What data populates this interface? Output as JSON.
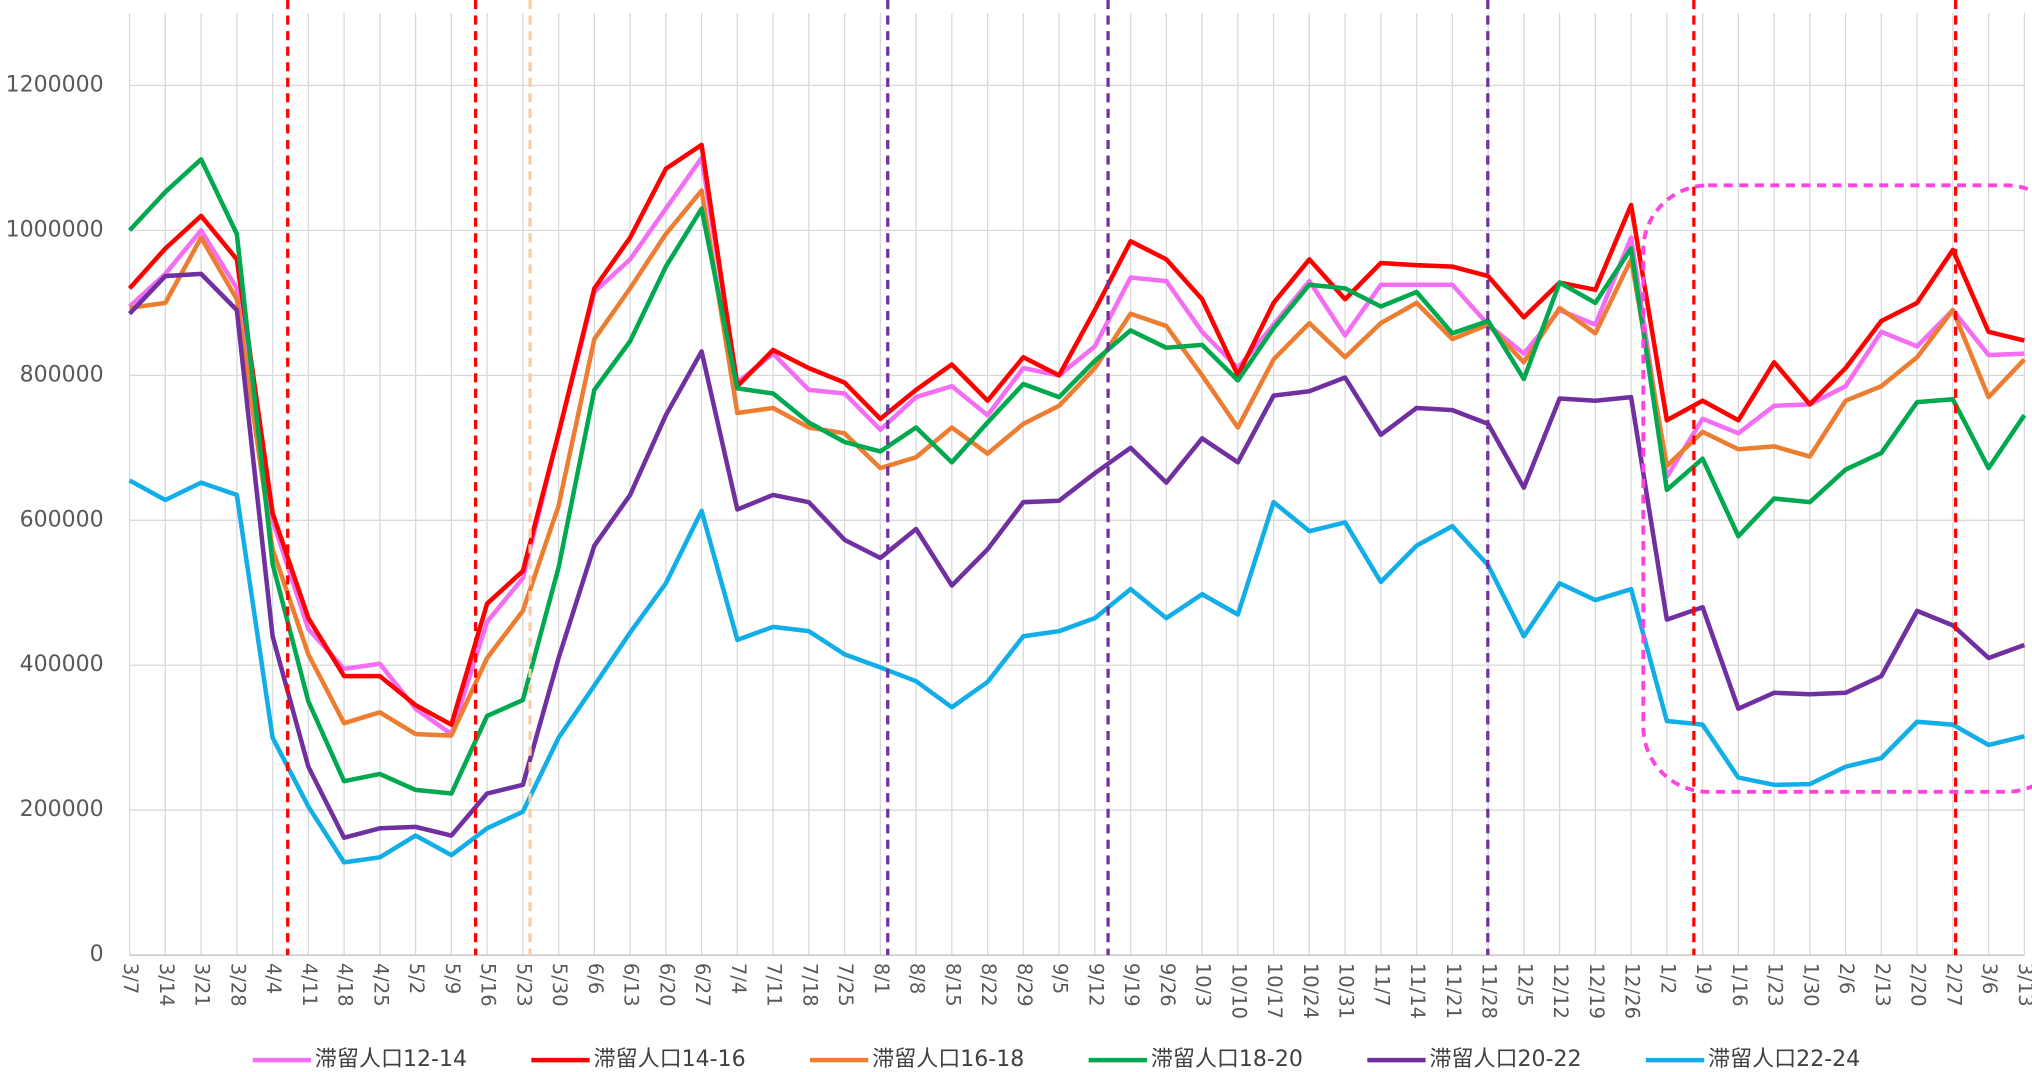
{
  "chart_data": {
    "type": "line",
    "categories": [
      "3/7",
      "3/14",
      "3/21",
      "3/28",
      "4/4",
      "4/11",
      "4/18",
      "4/25",
      "5/2",
      "5/9",
      "5/16",
      "5/23",
      "5/30",
      "6/6",
      "6/13",
      "6/20",
      "6/27",
      "7/4",
      "7/11",
      "7/18",
      "7/25",
      "8/1",
      "8/8",
      "8/15",
      "8/22",
      "8/29",
      "9/5",
      "9/12",
      "9/19",
      "9/26",
      "10/3",
      "10/10",
      "10/17",
      "10/24",
      "10/31",
      "11/7",
      "11/14",
      "11/21",
      "11/28",
      "12/5",
      "12/12",
      "12/19",
      "12/26",
      "1/2",
      "1/9",
      "1/16",
      "1/23",
      "1/30",
      "2/6",
      "2/13",
      "2/20",
      "2/27",
      "3/6",
      "3/13"
    ],
    "series": [
      {
        "name": "滞留人口12-14",
        "color": "#f46ef4",
        "values": [
          895000,
          940000,
          1000000,
          920000,
          600000,
          450000,
          395000,
          402000,
          340000,
          305000,
          460000,
          520000,
          720000,
          915000,
          960000,
          1030000,
          1100000,
          790000,
          830000,
          780000,
          775000,
          725000,
          770000,
          785000,
          745000,
          810000,
          800000,
          840000,
          935000,
          930000,
          860000,
          810000,
          870000,
          930000,
          855000,
          925000,
          925000,
          925000,
          870000,
          830000,
          890000,
          870000,
          990000,
          660000,
          740000,
          720000,
          758000,
          760000,
          785000,
          860000,
          840000,
          890000,
          828000,
          830000
        ]
      },
      {
        "name": "滞留人口14-16",
        "color": "#ff0000",
        "values": [
          920000,
          975000,
          1020000,
          960000,
          610000,
          465000,
          385000,
          385000,
          345000,
          318000,
          485000,
          530000,
          720000,
          920000,
          990000,
          1085000,
          1118000,
          785000,
          835000,
          810000,
          790000,
          740000,
          780000,
          815000,
          765000,
          825000,
          800000,
          890000,
          985000,
          960000,
          905000,
          800000,
          900000,
          960000,
          905000,
          955000,
          952000,
          950000,
          937000,
          880000,
          928000,
          918000,
          1035000,
          738000,
          765000,
          738000,
          818000,
          760000,
          810000,
          875000,
          900000,
          973000,
          860000,
          848000
        ]
      },
      {
        "name": "滞留人口16-18",
        "color": "#ed7d31",
        "values": [
          893000,
          900000,
          990000,
          905000,
          560000,
          415000,
          320000,
          335000,
          305000,
          303000,
          410000,
          475000,
          620000,
          850000,
          920000,
          995000,
          1055000,
          748000,
          755000,
          728000,
          720000,
          672000,
          687000,
          728000,
          692000,
          733000,
          758000,
          810000,
          885000,
          868000,
          800000,
          728000,
          822000,
          872000,
          825000,
          872000,
          900000,
          850000,
          870000,
          818000,
          893000,
          858000,
          960000,
          675000,
          722000,
          698000,
          702000,
          688000,
          765000,
          785000,
          825000,
          890000,
          770000,
          822000
        ]
      },
      {
        "name": "滞留人口18-20",
        "color": "#00a94f",
        "values": [
          1000000,
          1053000,
          1098000,
          995000,
          540000,
          350000,
          240000,
          250000,
          228000,
          223000,
          330000,
          352000,
          535000,
          780000,
          847000,
          950000,
          1030000,
          782000,
          775000,
          735000,
          708000,
          695000,
          728000,
          680000,
          735000,
          788000,
          770000,
          820000,
          862000,
          838000,
          842000,
          793000,
          865000,
          925000,
          920000,
          895000,
          915000,
          858000,
          875000,
          795000,
          928000,
          900000,
          975000,
          642000,
          685000,
          578000,
          630000,
          625000,
          670000,
          693000,
          763000,
          767000,
          672000,
          745000
        ]
      },
      {
        "name": "滞留人口20-22",
        "color": "#7030a0",
        "values": [
          885000,
          937000,
          940000,
          890000,
          440000,
          260000,
          162000,
          175000,
          177000,
          165000,
          223000,
          235000,
          410000,
          565000,
          635000,
          745000,
          833000,
          615000,
          635000,
          625000,
          573000,
          548000,
          588000,
          510000,
          560000,
          625000,
          627000,
          665000,
          700000,
          652000,
          713000,
          680000,
          772000,
          778000,
          797000,
          718000,
          755000,
          752000,
          733000,
          645000,
          768000,
          765000,
          770000,
          463000,
          480000,
          340000,
          362000,
          360000,
          362000,
          385000,
          475000,
          455000,
          410000,
          428000
        ]
      },
      {
        "name": "滞留人口22-24",
        "color": "#12aee8",
        "values": [
          655000,
          628000,
          652000,
          635000,
          300000,
          205000,
          128000,
          135000,
          165000,
          138000,
          175000,
          198000,
          300000,
          372000,
          445000,
          513000,
          613000,
          435000,
          453000,
          447000,
          415000,
          397000,
          378000,
          342000,
          377000,
          440000,
          447000,
          465000,
          505000,
          465000,
          498000,
          470000,
          625000,
          585000,
          597000,
          515000,
          565000,
          592000,
          538000,
          440000,
          513000,
          490000,
          505000,
          323000,
          318000,
          245000,
          235000,
          236000,
          260000,
          272000,
          322000,
          318000,
          290000,
          302000
        ]
      }
    ],
    "ylim": [
      0,
      1300000
    ],
    "yticks": [
      0,
      200000,
      400000,
      600000,
      800000,
      1000000,
      1200000
    ],
    "grid": true
  }
}
